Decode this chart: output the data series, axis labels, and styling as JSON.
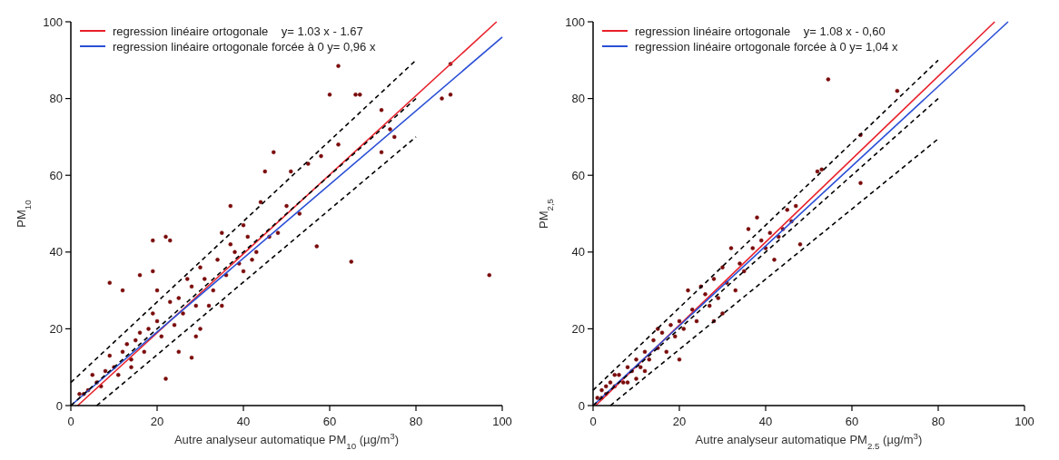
{
  "chart_data": [
    {
      "type": "scatter",
      "xlabel": "Autre analyseur automatique PM$_{10}$ (µg/m$^{3}$)",
      "ylabel": "PM$_{10}$",
      "xlim": [
        0,
        100
      ],
      "ylim": [
        0,
        100
      ],
      "xticks": [
        0,
        20,
        40,
        60,
        80,
        100
      ],
      "yticks": [
        0,
        20,
        40,
        60,
        80,
        100
      ],
      "grid": false,
      "legend": "top left",
      "series": [
        {
          "type": "scatter",
          "color": "#7a0a0a",
          "marker": "circle",
          "x": [
            62,
            60,
            66,
            67,
            88,
            86,
            88,
            97,
            65,
            57,
            47,
            45,
            51,
            37,
            22,
            23,
            19,
            9,
            12,
            16,
            19,
            22,
            14,
            28,
            29,
            72,
            74,
            75,
            72,
            62,
            58,
            55,
            40,
            44,
            50,
            53,
            48,
            46,
            35,
            38,
            42,
            40,
            30,
            32,
            25,
            27,
            20,
            18,
            15,
            12,
            10,
            8,
            6,
            4,
            3,
            2,
            5,
            7,
            9,
            11,
            13,
            14,
            16,
            17,
            19,
            21,
            23,
            24,
            26,
            28,
            29,
            31,
            33,
            34,
            36,
            37,
            39,
            41,
            43,
            20,
            25,
            35,
            30
          ],
          "values": [
            88.5,
            81,
            81,
            81,
            89,
            80,
            81,
            34,
            37.5,
            41.5,
            66,
            61,
            61,
            52,
            44,
            43,
            43,
            32,
            30,
            34,
            35,
            7,
            10,
            12.5,
            18,
            77,
            72,
            70,
            66,
            68,
            65,
            63,
            47,
            53,
            52,
            50,
            45,
            44,
            45,
            40,
            38,
            35,
            36,
            26,
            28,
            33,
            22,
            20,
            17,
            14,
            10,
            9,
            6,
            4,
            3,
            3,
            8,
            5,
            13,
            8,
            16,
            12,
            19,
            14,
            24,
            18,
            27,
            21,
            24,
            31,
            26,
            33,
            30,
            38,
            34,
            42,
            37,
            44,
            40,
            30,
            14,
            26,
            20
          ]
        },
        {
          "type": "line",
          "name": "regression linéaire ortogonale    y= 1.03 x - 1.67",
          "color": "#e8202a",
          "line_style": "solid",
          "x": [
            1.6,
            98.7
          ],
          "values": [
            0,
            100
          ]
        },
        {
          "type": "line",
          "name": "regression linéaire ortogonale forcée à 0 y= 0,96 x",
          "color": "#2a4fd6",
          "line_style": "solid",
          "x": [
            0,
            100
          ],
          "values": [
            0,
            96
          ]
        },
        {
          "type": "line",
          "color": "#000000",
          "line_style": "dashed",
          "x": [
            0,
            80
          ],
          "values": [
            6,
            90
          ]
        },
        {
          "type": "line",
          "color": "#000000",
          "line_style": "dashed",
          "x": [
            0,
            80
          ],
          "values": [
            0,
            80
          ]
        },
        {
          "type": "line",
          "color": "#000000",
          "line_style": "dashed",
          "x": [
            6,
            80
          ],
          "values": [
            0,
            70
          ]
        }
      ]
    },
    {
      "type": "scatter",
      "xlabel": "Autre analyseur automatique PM$_{2.5}$ (µg/m$^{3}$)",
      "ylabel": "PM$_{2,5}$",
      "xlim": [
        0,
        100
      ],
      "ylim": [
        0,
        100
      ],
      "xticks": [
        0,
        20,
        40,
        60,
        80,
        100
      ],
      "yticks": [
        0,
        20,
        40,
        60,
        80,
        100
      ],
      "grid": false,
      "legend": "top left",
      "series": [
        {
          "type": "scatter",
          "color": "#7a0a0a",
          "marker": "circle",
          "x": [
            54.5,
            70.5,
            62,
            52,
            53,
            62,
            47,
            45,
            43,
            36,
            32,
            38,
            40,
            42,
            48,
            30,
            28,
            35,
            33,
            25,
            22,
            27,
            30,
            24,
            20,
            18,
            16,
            15,
            14,
            13,
            12,
            11,
            10,
            9,
            8,
            7,
            6,
            5,
            4,
            3,
            2,
            1,
            2,
            3,
            17,
            19,
            21,
            23,
            26,
            29,
            31,
            34,
            37,
            39,
            41,
            44,
            46,
            10,
            8,
            5,
            20,
            15,
            12,
            28
          ],
          "values": [
            85,
            82,
            70.5,
            61,
            61.5,
            58,
            52,
            51,
            44,
            46,
            41,
            49,
            41,
            38,
            42,
            36,
            33,
            35,
            30,
            31,
            30,
            26,
            24,
            22,
            22,
            21,
            19,
            15,
            17,
            12,
            14,
            10,
            12,
            9,
            10,
            6,
            8,
            5,
            6,
            3,
            4,
            2,
            2,
            5,
            14,
            18,
            20,
            25,
            29,
            28,
            32,
            37,
            41,
            43,
            45,
            46,
            48,
            7,
            6,
            8,
            12,
            20,
            9,
            22
          ]
        },
        {
          "type": "line",
          "name": "regression linéaire ortogonale    y= 1.08 x - 0,60",
          "color": "#e8202a",
          "line_style": "solid",
          "x": [
            0.6,
            93.1
          ],
          "values": [
            0,
            100
          ]
        },
        {
          "type": "line",
          "name": "regression linéaire ortogonale forcée à 0 y= 1,04 x",
          "color": "#2a4fd6",
          "line_style": "solid",
          "x": [
            0,
            96.2
          ],
          "values": [
            0,
            100
          ]
        },
        {
          "type": "line",
          "color": "#000000",
          "line_style": "dashed",
          "x": [
            0,
            80
          ],
          "values": [
            4,
            90
          ]
        },
        {
          "type": "line",
          "color": "#000000",
          "line_style": "dashed",
          "x": [
            0,
            80
          ],
          "values": [
            0,
            80
          ]
        },
        {
          "type": "line",
          "color": "#000000",
          "line_style": "dashed",
          "x": [
            4,
            80
          ],
          "values": [
            0,
            69.5
          ]
        }
      ]
    }
  ]
}
